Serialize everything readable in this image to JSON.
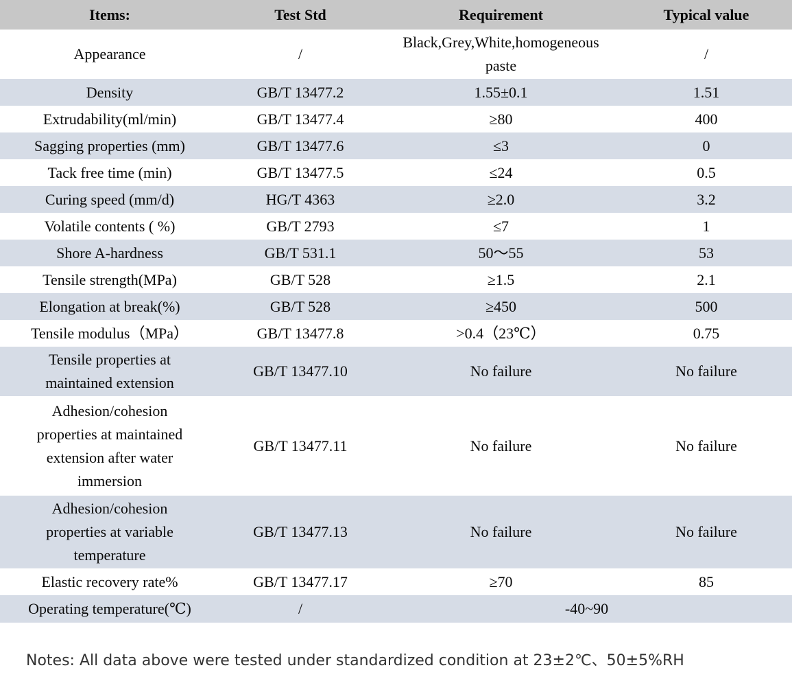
{
  "colors": {
    "header_bg": "#c7c7c7",
    "stripe_bg": "#d6dce6",
    "table_text": "#0a0a0a",
    "notes_text": "#343434",
    "page_bg": "#ffffff"
  },
  "table": {
    "headers": [
      "Items:",
      "Test Std",
      "Requirement",
      "Typical value"
    ],
    "rows": [
      {
        "item": "Appearance",
        "test_std": "/",
        "requirement": "Black,Grey,White,homogeneous paste",
        "typical_value": "/"
      },
      {
        "item": "Density",
        "test_std": "GB/T 13477.2",
        "requirement": "1.55±0.1",
        "typical_value": "1.51"
      },
      {
        "item": "Extrudability(ml/min)",
        "test_std": "GB/T 13477.4",
        "requirement": "≥80",
        "typical_value": "400"
      },
      {
        "item": "Sagging properties (mm)",
        "test_std": "GB/T 13477.6",
        "requirement": "≤3",
        "typical_value": "0"
      },
      {
        "item": "Tack free time (min)",
        "test_std": "GB/T 13477.5",
        "requirement": "≤24",
        "typical_value": "0.5"
      },
      {
        "item": "Curing speed (mm/d)",
        "test_std": "HG/T 4363",
        "requirement": "≥2.0",
        "typical_value": "3.2"
      },
      {
        "item": "Volatile contents ( %)",
        "test_std": "GB/T 2793",
        "requirement": "≤7",
        "typical_value": "1"
      },
      {
        "item": "Shore A-hardness",
        "test_std": "GB/T 531.1",
        "requirement": "50～55",
        "typical_value": "53"
      },
      {
        "item": "Tensile strength(MPa)",
        "test_std": "GB/T 528",
        "requirement": "≥1.5",
        "typical_value": "2.1"
      },
      {
        "item": "Elongation at break(%)",
        "test_std": "GB/T 528",
        "requirement": "≥450",
        "typical_value": "500"
      },
      {
        "item": "Tensile modulus（MPa）",
        "test_std": "GB/T 13477.8",
        "requirement": ">0.4（23℃）",
        "typical_value": "0.75"
      },
      {
        "item": "Tensile properties at maintained extension",
        "test_std": "GB/T 13477.10",
        "requirement": "No failure",
        "typical_value": "No failure"
      },
      {
        "item": "Adhesion/cohesion properties at maintained extension after water immersion",
        "test_std": "GB/T 13477.11",
        "requirement": "No failure",
        "typical_value": "No failure"
      },
      {
        "item": "Adhesion/cohesion properties at variable temperature",
        "test_std": "GB/T 13477.13",
        "requirement": "No failure",
        "typical_value": "No failure"
      },
      {
        "item": "Elastic recovery rate%",
        "test_std": "GB/T 13477.17",
        "requirement": "≥70",
        "typical_value": "85"
      },
      {
        "item": "Operating temperature(℃)",
        "test_std": "/",
        "requirement": "-40~90",
        "typical_value": null,
        "req_colspan": 2
      }
    ]
  },
  "notes": "Notes: All data above were tested under standardized condition at 23±2℃、50±5%RH"
}
